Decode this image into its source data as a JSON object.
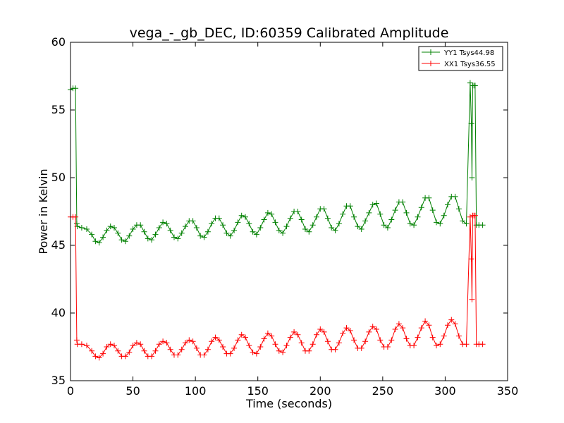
{
  "chart_data": {
    "type": "line",
    "title": "vega_-_gb_DEC, ID:60359 Calibrated Amplitude",
    "xlabel": "Time (seconds)",
    "ylabel": "Power in Kelvin",
    "xlim": [
      0,
      350
    ],
    "ylim": [
      35,
      60
    ],
    "xticks": [
      0,
      50,
      100,
      150,
      200,
      250,
      300,
      350
    ],
    "yticks": [
      35,
      40,
      45,
      50,
      55,
      60
    ],
    "grid": false,
    "legend_position": "top-right",
    "marker": "+",
    "series": [
      {
        "name": "YY1 Tsys44.98",
        "color": "#008000",
        "x": [
          0,
          2,
          4,
          5,
          5.5,
          9,
          13,
          17,
          20,
          23,
          26,
          29,
          32,
          35,
          38,
          41,
          44,
          47,
          50,
          53,
          56,
          59,
          62,
          65,
          68,
          71,
          74,
          77,
          80,
          83,
          86,
          89,
          92,
          95,
          98,
          101,
          104,
          107,
          110,
          113,
          116,
          119,
          122,
          125,
          128,
          131,
          134,
          137,
          140,
          143,
          146,
          149,
          152,
          155,
          158,
          161,
          164,
          167,
          170,
          173,
          176,
          179,
          182,
          185,
          188,
          191,
          194,
          197,
          200,
          203,
          206,
          209,
          212,
          215,
          218,
          221,
          224,
          227,
          230,
          233,
          236,
          239,
          242,
          245,
          248,
          251,
          254,
          257,
          260,
          263,
          266,
          269,
          272,
          275,
          278,
          281,
          284,
          287,
          290,
          293,
          296,
          299,
          302,
          305,
          308,
          311,
          314,
          317,
          320,
          321,
          321.5,
          322,
          323,
          324,
          325,
          327,
          330
        ],
        "y": [
          56.5,
          56.6,
          56.6,
          46.6,
          46.4,
          46.3,
          46.2,
          45.8,
          45.3,
          45.2,
          45.6,
          46.1,
          46.4,
          46.3,
          45.9,
          45.4,
          45.3,
          45.7,
          46.2,
          46.5,
          46.5,
          46.0,
          45.5,
          45.4,
          45.8,
          46.3,
          46.7,
          46.6,
          46.1,
          45.6,
          45.5,
          45.9,
          46.4,
          46.8,
          46.8,
          46.3,
          45.7,
          45.6,
          46.0,
          46.6,
          47.0,
          47.0,
          46.5,
          45.9,
          45.7,
          46.1,
          46.7,
          47.2,
          47.1,
          46.6,
          46.0,
          45.8,
          46.3,
          46.9,
          47.4,
          47.3,
          46.7,
          46.1,
          45.9,
          46.4,
          47.0,
          47.5,
          47.5,
          46.9,
          46.2,
          46.0,
          46.5,
          47.1,
          47.7,
          47.7,
          47.0,
          46.3,
          46.1,
          46.6,
          47.3,
          47.9,
          47.9,
          47.1,
          46.4,
          46.2,
          46.8,
          47.4,
          48.0,
          48.1,
          47.3,
          46.5,
          46.3,
          46.9,
          47.6,
          48.2,
          48.2,
          47.4,
          46.6,
          46.5,
          47.1,
          47.8,
          48.5,
          48.5,
          47.6,
          46.7,
          46.6,
          47.2,
          48.0,
          48.6,
          48.6,
          47.7,
          46.8,
          46.6,
          57.0,
          54.0,
          50.0,
          56.8,
          56.8,
          56.8,
          46.5,
          46.5,
          46.5
        ]
      },
      {
        "name": "XX1 Tsys36.55",
        "color": "#ff0000",
        "x": [
          0,
          2,
          4,
          5,
          5.5,
          9,
          13,
          17,
          20,
          23,
          26,
          29,
          32,
          35,
          38,
          41,
          44,
          47,
          50,
          53,
          56,
          59,
          62,
          65,
          68,
          71,
          74,
          77,
          80,
          83,
          86,
          89,
          92,
          95,
          98,
          101,
          104,
          107,
          110,
          113,
          116,
          119,
          122,
          125,
          128,
          131,
          134,
          137,
          140,
          143,
          146,
          149,
          152,
          155,
          158,
          161,
          164,
          167,
          170,
          173,
          176,
          179,
          182,
          185,
          188,
          191,
          194,
          197,
          200,
          203,
          206,
          209,
          212,
          215,
          218,
          221,
          224,
          227,
          230,
          233,
          236,
          239,
          242,
          245,
          248,
          251,
          254,
          257,
          260,
          263,
          266,
          269,
          272,
          275,
          278,
          281,
          284,
          287,
          290,
          293,
          296,
          299,
          302,
          305,
          308,
          311,
          314,
          317,
          320,
          321,
          321.5,
          322,
          323,
          324,
          325,
          327,
          330
        ],
        "y": [
          47.1,
          47.1,
          47.1,
          38.0,
          37.7,
          37.7,
          37.6,
          37.2,
          36.8,
          36.7,
          37.0,
          37.5,
          37.7,
          37.6,
          37.2,
          36.8,
          36.8,
          37.1,
          37.6,
          37.8,
          37.7,
          37.2,
          36.8,
          36.8,
          37.2,
          37.7,
          37.9,
          37.8,
          37.3,
          36.9,
          36.9,
          37.3,
          37.8,
          38.0,
          37.9,
          37.4,
          36.9,
          36.9,
          37.3,
          37.9,
          38.2,
          38.0,
          37.5,
          37.0,
          37.0,
          37.4,
          38.0,
          38.4,
          38.2,
          37.6,
          37.1,
          37.0,
          37.5,
          38.1,
          38.5,
          38.3,
          37.7,
          37.2,
          37.1,
          37.6,
          38.2,
          38.6,
          38.4,
          37.8,
          37.2,
          37.2,
          37.7,
          38.4,
          38.8,
          38.6,
          37.9,
          37.3,
          37.3,
          37.8,
          38.5,
          38.9,
          38.7,
          38.0,
          37.4,
          37.4,
          37.9,
          38.6,
          39.0,
          38.8,
          38.0,
          37.5,
          37.5,
          38.0,
          38.8,
          39.2,
          38.9,
          38.1,
          37.6,
          37.6,
          38.2,
          38.9,
          39.4,
          39.1,
          38.2,
          37.6,
          37.7,
          38.3,
          39.1,
          39.5,
          39.2,
          38.3,
          37.7,
          37.7,
          47.1,
          44.0,
          41.0,
          47.2,
          47.2,
          47.2,
          37.7,
          37.7,
          37.7
        ]
      }
    ]
  }
}
